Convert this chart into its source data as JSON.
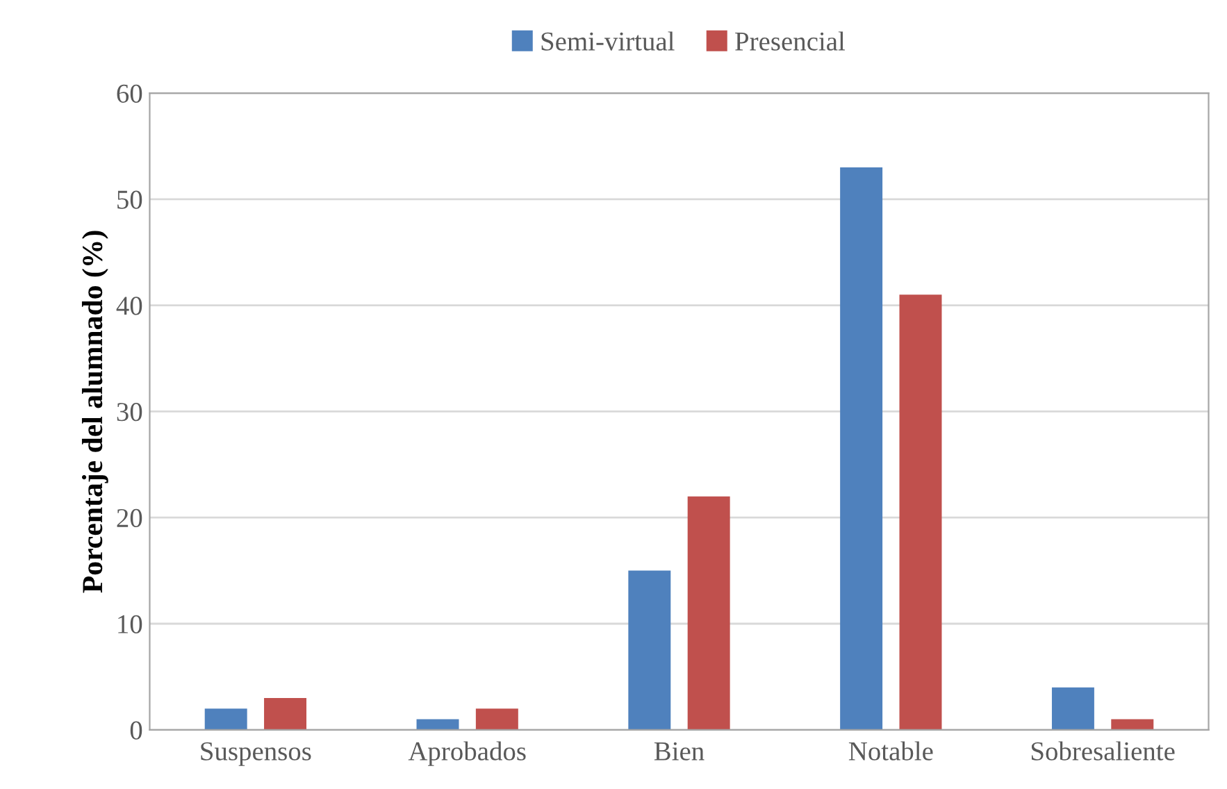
{
  "chart_data": {
    "type": "bar",
    "ylabel": "Porcentaje del alumnado (%)",
    "categories": [
      "Suspensos",
      "Aprobados",
      "Bien",
      "Notable",
      "Sobresaliente"
    ],
    "series": [
      {
        "name": "Semi-virtual",
        "color": "#4f81bd",
        "values": [
          2,
          1,
          15,
          53,
          4
        ]
      },
      {
        "name": "Presencial",
        "color": "#c0504d",
        "values": [
          3,
          2,
          22,
          41,
          1
        ]
      }
    ],
    "ylim": [
      0,
      60
    ],
    "yticks": [
      0,
      10,
      20,
      30,
      40,
      50,
      60
    ],
    "grid": "y",
    "legend": "top"
  }
}
